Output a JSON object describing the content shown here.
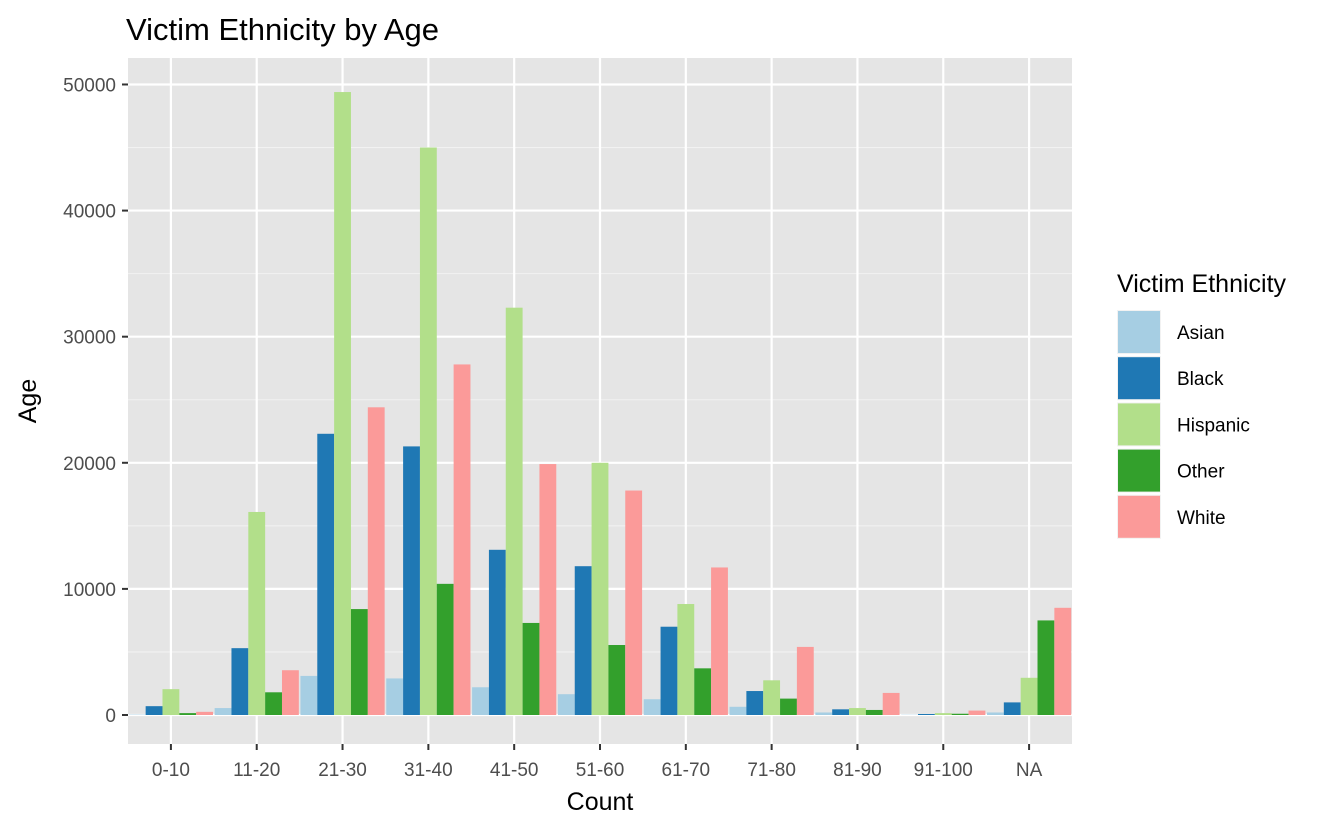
{
  "chart_data": {
    "type": "bar",
    "title": "Victim Ethnicity by Age",
    "xlabel": "Count",
    "ylabel": "Age",
    "categories": [
      "0-10",
      "11-20",
      "21-30",
      "31-40",
      "41-50",
      "51-60",
      "61-70",
      "71-80",
      "81-90",
      "91-100",
      "NA"
    ],
    "y_ticks": [
      0,
      10000,
      20000,
      30000,
      40000,
      50000
    ],
    "ylim": [
      -2300,
      52100
    ],
    "grid": true,
    "legend": {
      "title": "Victim Ethnicity",
      "position": "right"
    },
    "series": [
      {
        "name": "Asian",
        "color": "#a6cee3",
        "values": [
          30,
          550,
          3100,
          2900,
          2200,
          1650,
          1250,
          650,
          200,
          20,
          200
        ]
      },
      {
        "name": "Black",
        "color": "#1f78b4",
        "values": [
          700,
          5300,
          22300,
          21300,
          13100,
          11800,
          7000,
          1900,
          450,
          80,
          1000
        ]
      },
      {
        "name": "Hispanic",
        "color": "#b2df8a",
        "values": [
          2050,
          16100,
          49400,
          45000,
          32300,
          20000,
          8800,
          2750,
          550,
          150,
          2950
        ]
      },
      {
        "name": "Other",
        "color": "#33a02c",
        "values": [
          150,
          1800,
          8400,
          10400,
          7300,
          5550,
          3700,
          1300,
          400,
          100,
          7500
        ]
      },
      {
        "name": "White",
        "color": "#fb9a99",
        "values": [
          250,
          3550,
          24400,
          27800,
          19900,
          17800,
          11700,
          5400,
          1750,
          350,
          8500
        ]
      }
    ]
  }
}
